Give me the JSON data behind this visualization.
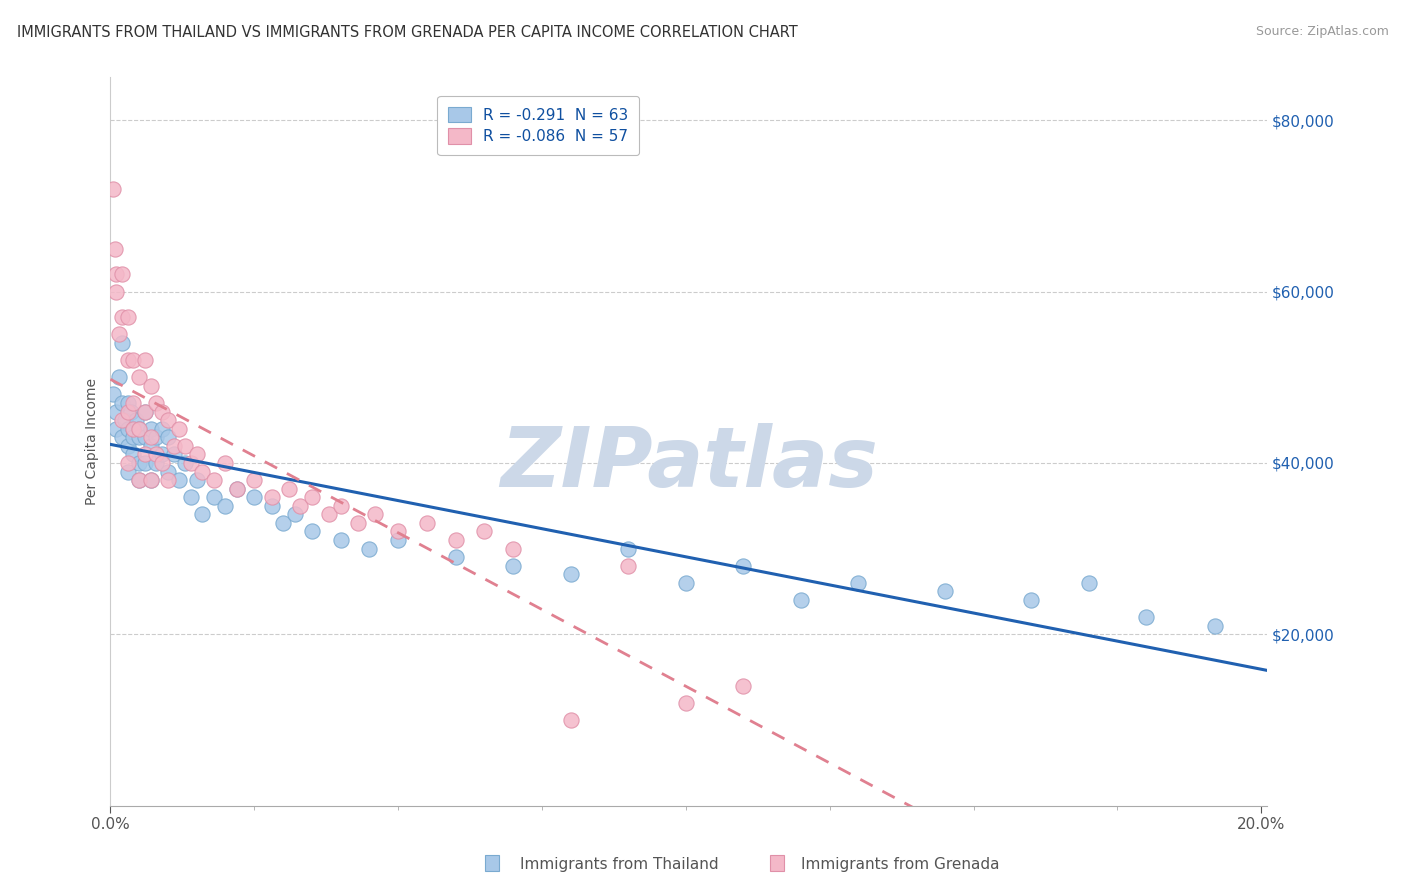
{
  "title": "IMMIGRANTS FROM THAILAND VS IMMIGRANTS FROM GRENADA PER CAPITA INCOME CORRELATION CHART",
  "source": "Source: ZipAtlas.com",
  "ylabel": "Per Capita Income",
  "legend_label1": "Immigrants from Thailand",
  "legend_label2": "Immigrants from Grenada",
  "R1": -0.291,
  "N1": 63,
  "R2": -0.086,
  "N2": 57,
  "color1": "#a8c8e8",
  "color2": "#f4b8c8",
  "trendline1_color": "#2060b0",
  "trendline2_color": "#e08090",
  "xlim": [
    0.0,
    0.201
  ],
  "ylim": [
    0,
    85000
  ],
  "background_color": "#ffffff",
  "watermark": "ZIPatlas",
  "watermark_color": "#ccd8e8",
  "thailand_x": [
    0.0005,
    0.001,
    0.001,
    0.0015,
    0.002,
    0.002,
    0.002,
    0.0025,
    0.003,
    0.003,
    0.003,
    0.003,
    0.0035,
    0.004,
    0.004,
    0.004,
    0.0045,
    0.005,
    0.005,
    0.005,
    0.005,
    0.006,
    0.006,
    0.006,
    0.007,
    0.007,
    0.007,
    0.008,
    0.008,
    0.009,
    0.009,
    0.01,
    0.01,
    0.011,
    0.012,
    0.013,
    0.014,
    0.015,
    0.016,
    0.018,
    0.02,
    0.022,
    0.025,
    0.028,
    0.03,
    0.032,
    0.035,
    0.04,
    0.045,
    0.05,
    0.06,
    0.07,
    0.08,
    0.09,
    0.1,
    0.11,
    0.12,
    0.13,
    0.145,
    0.16,
    0.17,
    0.18,
    0.192
  ],
  "thailand_y": [
    48000,
    46000,
    44000,
    50000,
    47000,
    54000,
    43000,
    45000,
    47000,
    44000,
    42000,
    39000,
    46000,
    44000,
    43000,
    41000,
    45000,
    44000,
    43000,
    40000,
    38000,
    46000,
    43000,
    40000,
    44000,
    42000,
    38000,
    43000,
    40000,
    44000,
    41000,
    43000,
    39000,
    41000,
    38000,
    40000,
    36000,
    38000,
    34000,
    36000,
    35000,
    37000,
    36000,
    35000,
    33000,
    34000,
    32000,
    31000,
    30000,
    31000,
    29000,
    28000,
    27000,
    30000,
    26000,
    28000,
    24000,
    26000,
    25000,
    24000,
    26000,
    22000,
    21000
  ],
  "grenada_x": [
    0.0005,
    0.0008,
    0.001,
    0.001,
    0.0015,
    0.002,
    0.002,
    0.002,
    0.003,
    0.003,
    0.003,
    0.003,
    0.004,
    0.004,
    0.004,
    0.005,
    0.005,
    0.005,
    0.006,
    0.006,
    0.006,
    0.007,
    0.007,
    0.007,
    0.008,
    0.008,
    0.009,
    0.009,
    0.01,
    0.01,
    0.011,
    0.012,
    0.013,
    0.014,
    0.015,
    0.016,
    0.018,
    0.02,
    0.022,
    0.025,
    0.028,
    0.031,
    0.033,
    0.035,
    0.038,
    0.04,
    0.043,
    0.046,
    0.05,
    0.055,
    0.06,
    0.065,
    0.07,
    0.08,
    0.09,
    0.1,
    0.11
  ],
  "grenada_y": [
    72000,
    65000,
    62000,
    60000,
    55000,
    62000,
    57000,
    45000,
    57000,
    52000,
    46000,
    40000,
    52000,
    47000,
    44000,
    50000,
    44000,
    38000,
    52000,
    46000,
    41000,
    49000,
    43000,
    38000,
    47000,
    41000,
    46000,
    40000,
    45000,
    38000,
    42000,
    44000,
    42000,
    40000,
    41000,
    39000,
    38000,
    40000,
    37000,
    38000,
    36000,
    37000,
    35000,
    36000,
    34000,
    35000,
    33000,
    34000,
    32000,
    33000,
    31000,
    32000,
    30000,
    10000,
    28000,
    12000,
    14000
  ]
}
